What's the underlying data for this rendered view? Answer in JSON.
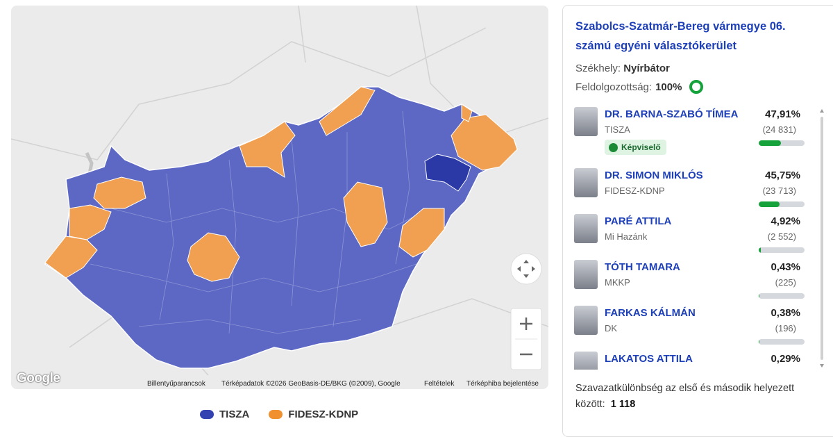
{
  "map": {
    "google_logo": "Google",
    "attribution": {
      "keyboard": "Billentyűparancsok",
      "data": "Térképadatok ©2026 GeoBasis-DE/BKG (©2009), Google",
      "terms": "Feltételek",
      "report": "Térképhiba bejelentése"
    },
    "legend": [
      {
        "name": "TISZA",
        "color": "#3342b0"
      },
      {
        "name": "FIDESZ-KDNP",
        "color": "#f0902f"
      }
    ]
  },
  "panel": {
    "title": "Szabolcs-Szatmár-Bereg vármegye 06. számú egyéni választókerület",
    "seat_label": "Székhely:",
    "seat": "Nyírbátor",
    "processed_label": "Feldolgozottság:",
    "processed": "100%",
    "elected_badge": "Képviselő",
    "candidates": [
      {
        "name": "DR. BARNA-SZABÓ TÍMEA",
        "party": "TISZA",
        "percent": {
          "value": 47.91,
          "label": "47,91%"
        },
        "votes": "(24 831)"
      },
      {
        "name": "DR. SIMON MIKLÓS",
        "party": "FIDESZ-KDNP",
        "percent": {
          "value": 45.75,
          "label": "45,75%"
        },
        "votes": "(23 713)"
      },
      {
        "name": "PARÉ ATTILA",
        "party": "Mi Hazánk",
        "percent": {
          "value": 4.92,
          "label": "4,92%"
        },
        "votes": "(2 552)"
      },
      {
        "name": "TÓTH TAMARA",
        "party": "MKKP",
        "percent": {
          "value": 0.43,
          "label": "0,43%"
        },
        "votes": "(225)"
      },
      {
        "name": "FARKAS KÁLMÁN",
        "party": "DK",
        "percent": {
          "value": 0.38,
          "label": "0,38%"
        },
        "votes": "(196)"
      },
      {
        "name": "LAKATOS ATTILA",
        "percent": {
          "value": 0.29,
          "label": "0,29%"
        }
      }
    ],
    "difference_text": "Szavazatkülönbség az első és második helyezett között:",
    "difference": "1 118"
  }
}
